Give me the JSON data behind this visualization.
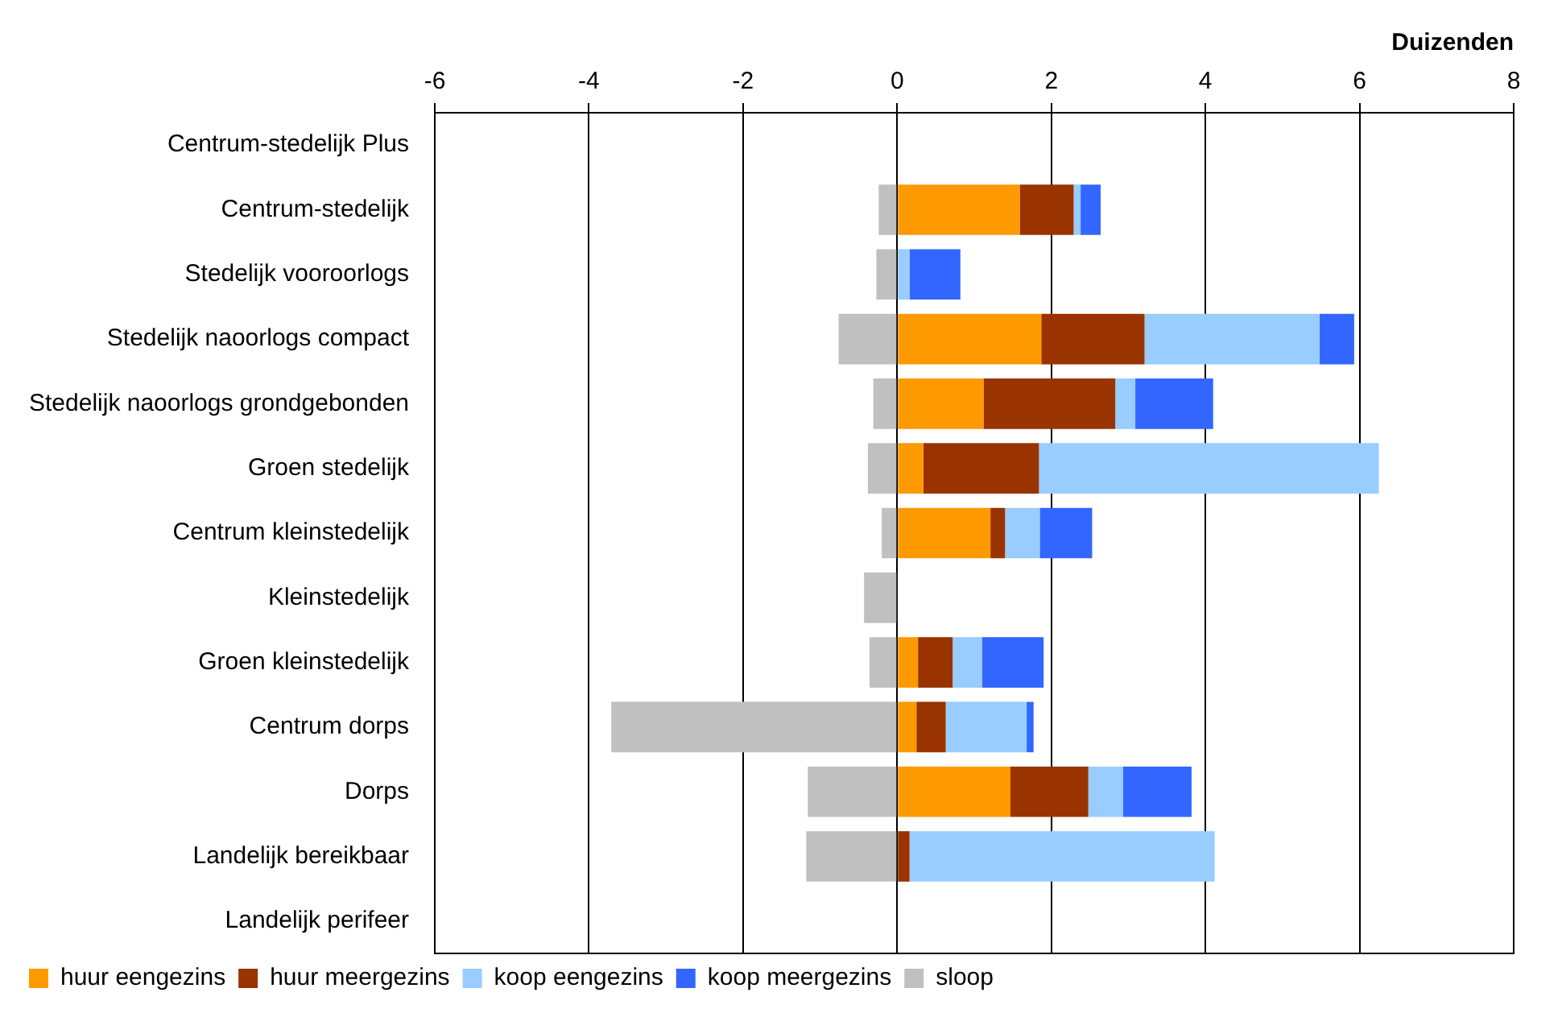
{
  "chart_data": {
    "type": "bar",
    "orientation": "horizontal",
    "stacked": true,
    "xlabel": "Duizenden",
    "categories": [
      "Centrum-stedelijk Plus",
      "Centrum-stedelijk",
      "Stedelijk vooroorlogs",
      "Stedelijk naoorlogs compact",
      "Stedelijk naoorlogs grondgebonden",
      "Groen stedelijk",
      "Centrum kleinstedelijk",
      "Kleinstedelijk",
      "Groen kleinstedelijk",
      "Centrum dorps",
      "Dorps",
      "Landelijk bereikbaar",
      "Landelijk perifeer"
    ],
    "series": [
      {
        "name": "huur eengezins",
        "color": "#ff9900",
        "values": [
          null,
          1.59,
          null,
          1.87,
          1.12,
          0.34,
          1.21,
          null,
          0.27,
          0.25,
          1.47,
          null,
          null
        ]
      },
      {
        "name": "huur meergezins",
        "color": "#993300",
        "values": [
          null,
          0.7,
          null,
          1.34,
          1.71,
          1.5,
          0.19,
          null,
          0.45,
          0.38,
          1.01,
          0.16,
          null
        ]
      },
      {
        "name": "koop eengezins",
        "color": "#99ccff",
        "values": [
          null,
          0.09,
          0.16,
          2.27,
          0.26,
          4.41,
          0.45,
          null,
          0.38,
          1.05,
          0.45,
          3.96,
          null
        ]
      },
      {
        "name": "koop meergezins",
        "color": "#3366ff",
        "values": [
          null,
          0.26,
          0.66,
          0.45,
          1.01,
          null,
          0.68,
          null,
          0.8,
          0.09,
          0.89,
          null,
          null
        ]
      },
      {
        "name": "sloop",
        "color": "#c0c0c0",
        "values": [
          null,
          -0.24,
          -0.27,
          -0.76,
          -0.31,
          -0.38,
          -0.2,
          -0.43,
          -0.36,
          -3.71,
          -1.16,
          -1.18,
          null
        ]
      }
    ],
    "xlim": [
      -6,
      8
    ],
    "xticks": [
      -6,
      -4,
      -2,
      0,
      2,
      4,
      6,
      8
    ],
    "grid": "x",
    "legend": "bottom left"
  }
}
